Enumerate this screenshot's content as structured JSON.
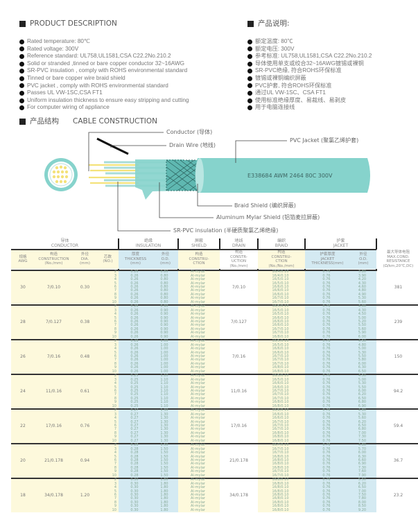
{
  "description": {
    "title_en": "PRODUCT DESCRIPTION",
    "title_cn": "产品说明:",
    "items_en": [
      "Rated temperature: 80℃",
      "Rated voltage: 300V",
      "Reference standard: UL758,UL1581,CSA C22.2No.210.2",
      "Solid or stranded ,tinned or bare copper conductor 32~16AWG",
      "SR-PVC insulation , comply with ROHS environmental standard",
      "Tinned or bare copper wire braid shield",
      "PVC jacket , comply with ROHS environmental standard",
      "Passes UL VW-1SC,CSA FT1",
      "Uniform insulation thickness to ensure easy stripping and cutting",
      "For computer wiring of appliance"
    ],
    "items_cn": [
      "额定温度: 80℃",
      "额定电压: 300V",
      "参考标准: UL758,UL1581,CSA C22.2No.210.2",
      "导体使用单支或绞合32~16AWG镀锡或裸铜",
      "SR-PVC绝缘, 符合ROHS环保标准",
      "镀锡或裸铜编织屏蔽",
      "PVC护套, 符合ROHS环保标准",
      "通过UL VW-1SC、CSA FT1",
      "使用标准绝缘厚度、易裁线、易剥皮",
      "用于电脑连接线"
    ]
  },
  "construction": {
    "title_cn": "产品结构",
    "title_en": "CABLE CONSTRUCTION",
    "labels": {
      "conductor": "Conductor (导体)",
      "drain": "Drain Wire (地线)",
      "jacket": "PVC Jacket (聚氯乙烯护套)",
      "braid": "Braid Shield (编织屏蔽)",
      "mylar": "Aluminum Mylar Shield (铝箔麦拉屏蔽)",
      "insulation": "SR-PVC insulation (半硬质聚氯乙烯绝缘)"
    },
    "marking": "E338684  AWM 2464 80C 300V",
    "colors": {
      "jacket": "#86d3cc",
      "conductor": "#f4e27a"
    }
  },
  "table": {
    "groups": [
      "导体\nCONDUCTOR",
      "绝缘\nINSULATION",
      "屏蔽\nSHIELD",
      "地线\nDRAIN",
      "编织\nBRAID",
      "护套\nJACKET"
    ],
    "headers": [
      "规格\nAWG",
      "构造\nCONSTRUCTION\n(No./mm)",
      "外径\nDIA.\n(mm)",
      "芯数\n(NO.)",
      "厚度\nTHICKNESS\n(mm)",
      "外径\nO.D.\n(mm)",
      "构造\nCONSTRU-\nCTION",
      "构造\nCONSTR-\nUCTION\n(No./mm)",
      "构造\nCONSTRU-\nCTION\n(No./No./mm)",
      "护套厚度\nJACKET\nTHICKNESS(mm)",
      "外径\nO.D.\n(mm)",
      "最大导体电阻\nMAX.COND.\nRESISTANCE\n(Ω/km,20℃,DC)"
    ],
    "cores": [
      "2",
      "3",
      "4",
      "5",
      "6",
      "7",
      "8",
      "9",
      "10"
    ],
    "shield": "Al-mylar",
    "jacket_thickness": "0.76",
    "rows": [
      {
        "awg": "30",
        "construction": "7/0.10",
        "dia": "0.30",
        "ins_thk": "0.26",
        "ins_od": "0.80",
        "drain": "7/0.10",
        "braid": [
          "16/4/0.10",
          "16/4/0.10",
          "16/5/0.10",
          "16/5/0.10",
          "16/6/0.10",
          "16/6/0.10",
          "16/6/0.10",
          "16/7/0.10",
          "16/7/0.10"
        ],
        "jacket_od": [
          "3.80",
          "3.90",
          "4.20",
          "4.30",
          "4.60",
          "4.80",
          "4.90",
          "5.30",
          "5.60"
        ],
        "resistance": "381"
      },
      {
        "awg": "28",
        "construction": "7/0.127",
        "dia": "0.38",
        "ins_thk": "0.26",
        "ins_od": "0.90",
        "drain": "7/0.127",
        "braid": [
          "16/5/0.10",
          "16/5/0.10",
          "16/5/0.10",
          "16/6/0.10",
          "16/6/0.10",
          "16/6/0.10",
          "16/7/0.10",
          "16/7/0.10",
          "16/8/0.10"
        ],
        "jacket_od": [
          "4.00",
          "4.30",
          "4.50",
          "5.00",
          "5.20",
          "5.50",
          "5.60",
          "5.90",
          "6.00"
        ],
        "resistance": "239"
      },
      {
        "awg": "26",
        "construction": "7/0.16",
        "dia": "0.48",
        "ins_thk": "0.26",
        "ins_od": "1.00",
        "drain": "7/0.16",
        "braid": [
          "16/5/0.10",
          "16/5/0.10",
          "16/6/0.10",
          "16/6/0.10",
          "16/7/0.10",
          "16/7/0.10",
          "16/7/0.10",
          "16/8/0.10",
          "16/8/0.10"
        ],
        "jacket_od": [
          "4.50",
          "4.80",
          "5.00",
          "5.30",
          "5.50",
          "5.80",
          "6.00",
          "6.30",
          "6.50"
        ],
        "resistance": "150"
      },
      {
        "awg": "24",
        "construction": "11/0.16",
        "dia": "0.61",
        "ins_thk": "0.25",
        "ins_od": "1.10",
        "drain": "11/0.16",
        "braid": [
          "16/5/0.10",
          "16/5/0.10",
          "16/6/0.10",
          "16/6/0.10",
          "16/7/0.10",
          "16/7/0.10",
          "16/7/0.10",
          "16/8/0.10",
          "16/8/0.10"
        ],
        "jacket_od": [
          "4.50",
          "5.00",
          "5.30",
          "5.50",
          "6.00",
          "6.20",
          "6.50",
          "6.80",
          "6.90"
        ],
        "resistance": "94.2"
      },
      {
        "awg": "22",
        "construction": "17/0.16",
        "dia": "0.76",
        "ins_thk": "0.27",
        "ins_od": "1.30",
        "drain": "17/0.16",
        "braid": [
          "16/6/0.10",
          "16/6/0.10",
          "16/6/0.10",
          "16/7/0.10",
          "16/7/0.10",
          "16/7/0.10",
          "16/8/0.10",
          "16/8/0.10",
          "16/8/0.10"
        ],
        "jacket_od": [
          "4.80",
          "5.30",
          "5.60",
          "6.20",
          "6.50",
          "6.80",
          "7.00",
          "7.30",
          "7.50"
        ],
        "resistance": "59.4"
      },
      {
        "awg": "20",
        "construction": "21/0.178",
        "dia": "0.94",
        "ins_thk": "0.28",
        "ins_od": "1.50",
        "drain": "21/0.178",
        "braid": [
          "16/7/0.10",
          "16/7/0.10",
          "16/7/0.10",
          "16/8/0.10",
          "16/8/0.10",
          "16/8/0.10",
          "16/8/0.10",
          "16/7/0.10",
          "16/7/0.10"
        ],
        "jacket_od": [
          "4.80",
          "5.70",
          "6.00",
          "6.30",
          "6.60",
          "6.90",
          "7.30",
          "7.60",
          "7.90"
        ],
        "resistance": "36.7"
      },
      {
        "awg": "18",
        "construction": "34/0.178",
        "dia": "1.20",
        "ins_thk": "0.30",
        "ins_od": "1.80",
        "drain": "34/0.178",
        "braid": [
          "16/8/0.10",
          "16/8/0.10",
          "16/8/0.10",
          "16/8/0.10",
          "16/8/0.10",
          "16/8/0.10",
          "16/8/0.10",
          "16/8/0.10",
          "16/8/0.10"
        ],
        "jacket_od": [
          "5.50",
          "6.20",
          "6.50",
          "7.00",
          "7.50",
          "7.80",
          "8.00",
          "8.50",
          "9.20"
        ],
        "resistance": "23.2"
      }
    ]
  }
}
